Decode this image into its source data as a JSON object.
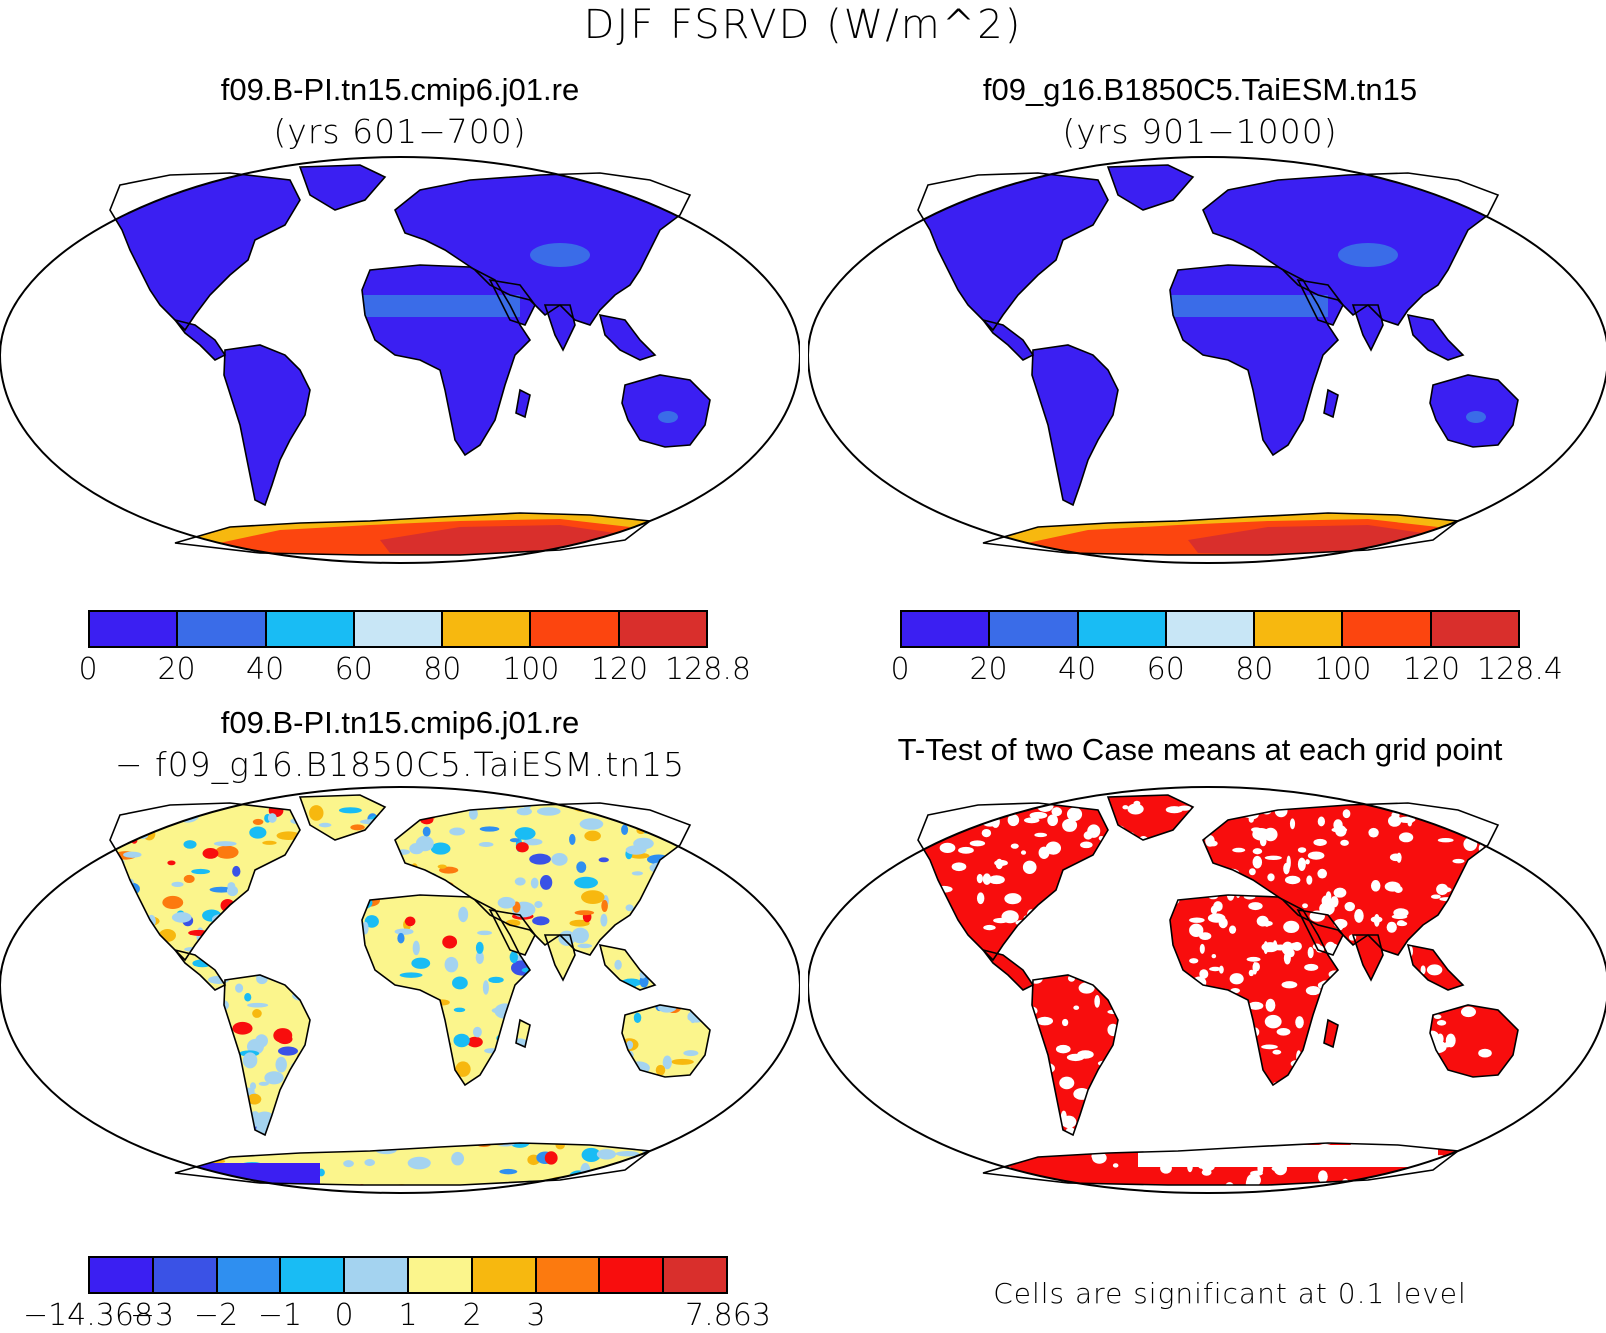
{
  "title": "DJF FSRVD (W/m^2)",
  "panels": [
    {
      "id": "case1",
      "title": "f09.B-PI.tn15.cmip6.j01.re",
      "subtitle": "(yrs 601−700)"
    },
    {
      "id": "case2",
      "title": "f09_g16.B1850C5.TaiESM.tn15",
      "subtitle": "(yrs 901−1000)"
    },
    {
      "id": "diff",
      "title": "f09.B-PI.tn15.cmip6.j01.re",
      "subtitle": "− f09_g16.B1850C5.TaiESM.tn15"
    },
    {
      "id": "ttest",
      "title": "T-Test of two Case means at each grid point",
      "subtitle": ""
    }
  ],
  "colorbars": {
    "case1": {
      "colors": [
        "#3b1ff2",
        "#3a6ce8",
        "#19bcf4",
        "#c8e6f6",
        "#f7b80f",
        "#fc450f",
        "#d92f2c"
      ],
      "labels": [
        "0",
        "20",
        "40",
        "60",
        "80",
        "100",
        "120",
        "128.8"
      ]
    },
    "case2": {
      "colors": [
        "#3b1ff2",
        "#3a6ce8",
        "#19bcf4",
        "#c8e6f6",
        "#f7b80f",
        "#fc450f",
        "#d92f2c"
      ],
      "labels": [
        "0",
        "20",
        "40",
        "60",
        "80",
        "100",
        "120",
        "128.4"
      ]
    },
    "diff": {
      "colors": [
        "#3b1ff2",
        "#3a52e6",
        "#2f8ff0",
        "#19bcf4",
        "#a4d3f0",
        "#fbf58c",
        "#f7b80f",
        "#fc7a0f",
        "#f80d0d",
        "#d92f2c"
      ],
      "labels": [
        "−14.368",
        "−3",
        "−2",
        "−1",
        "0",
        "1",
        "2",
        "3",
        "7.863"
      ]
    }
  },
  "note": "Cells are significant at 0.1 level",
  "colors": {
    "land_mean": "#3b1ff2",
    "desert_mean": "#3a6ce8",
    "antarctica_high": "#d92f2c",
    "antarctica_mid": "#fc450f",
    "antarctica_low": "#f7b80f",
    "diff_positive": "#fbf58c",
    "diff_negative": "#a4d3f0",
    "significant": "#f80d0d"
  }
}
